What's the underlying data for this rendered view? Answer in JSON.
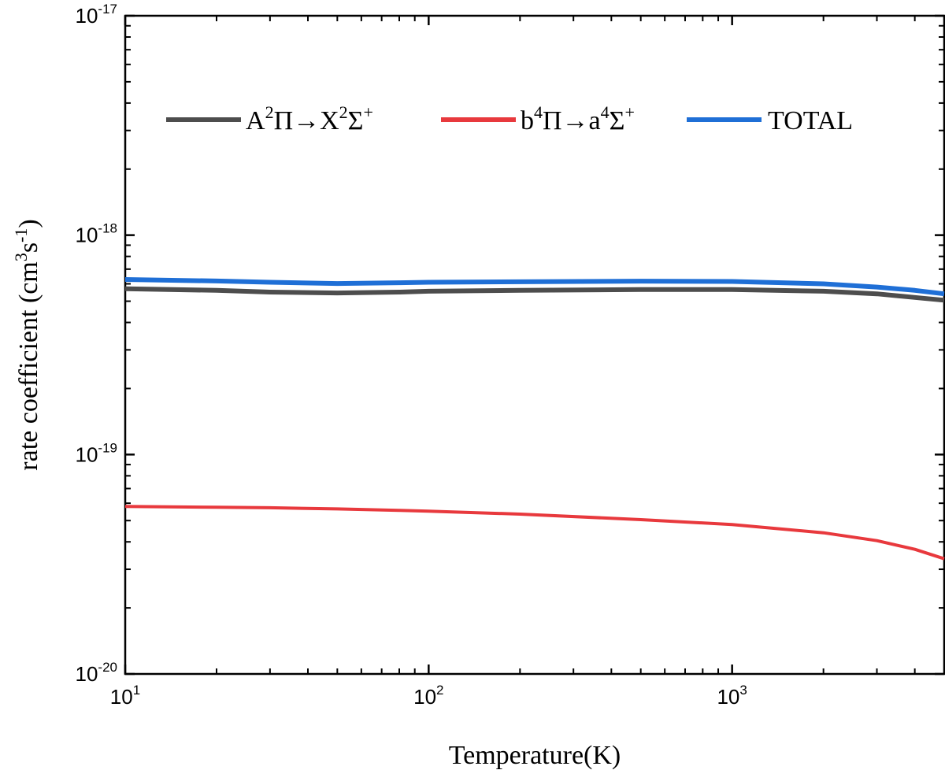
{
  "chart_data": {
    "type": "line",
    "title": "",
    "xlabel": "Temperature(K)",
    "ylabel": {
      "text": "rate coefficient (cm",
      "sup1": "3",
      "mid": "s",
      "sup2": "-1",
      "end": ")"
    },
    "xscale": "log",
    "yscale": "log",
    "xlim": [
      10,
      5000
    ],
    "ylim": [
      1e-20,
      1e-17
    ],
    "grid": false,
    "legend_position": "top",
    "x_ticks": [
      {
        "value": 10,
        "base": "10",
        "exp": "1"
      },
      {
        "value": 100,
        "base": "10",
        "exp": "2"
      },
      {
        "value": 1000,
        "base": "10",
        "exp": "3"
      }
    ],
    "y_ticks": [
      {
        "value": 1e-20,
        "base": "10",
        "exp": "-20"
      },
      {
        "value": 1e-19,
        "base": "10",
        "exp": "-19"
      },
      {
        "value": 1e-18,
        "base": "10",
        "exp": "-18"
      },
      {
        "value": 1e-17,
        "base": "10",
        "exp": "-17"
      }
    ],
    "x": [
      10,
      20,
      30,
      50,
      80,
      100,
      200,
      500,
      1000,
      2000,
      3000,
      4000,
      5000
    ],
    "series": [
      {
        "name": "A2Π→X2Σ+",
        "legend": {
          "p1": "A",
          "s1": "2",
          "p2": "Π→X",
          "s2": "2",
          "p3": "Σ",
          "s3": "+"
        },
        "color": "#4d4d4d",
        "values": [
          5.7e-19,
          5.6e-19,
          5.5e-19,
          5.45e-19,
          5.5e-19,
          5.55e-19,
          5.6e-19,
          5.65e-19,
          5.65e-19,
          5.55e-19,
          5.4e-19,
          5.2e-19,
          5.05e-19
        ]
      },
      {
        "name": "b4Π→a4Σ+",
        "legend": {
          "p1": "b",
          "s1": "4",
          "p2": "Π→a",
          "s2": "4",
          "p3": "Σ",
          "s3": "+"
        },
        "color": "#e8393d",
        "values": [
          5.8e-20,
          5.75e-20,
          5.72e-20,
          5.65e-20,
          5.57e-20,
          5.52e-20,
          5.35e-20,
          5.05e-20,
          4.8e-20,
          4.4e-20,
          4.05e-20,
          3.7e-20,
          3.35e-20
        ]
      },
      {
        "name": "TOTAL",
        "legend": {
          "p1": "TOTAL",
          "s1": "",
          "p2": "",
          "s2": "",
          "p3": "",
          "s3": ""
        },
        "color": "#1f6fd6",
        "values": [
          6.28e-19,
          6.18e-19,
          6.1e-19,
          6.02e-19,
          6.07e-19,
          6.1e-19,
          6.13e-19,
          6.17e-19,
          6.15e-19,
          6e-19,
          5.8e-19,
          5.6e-19,
          5.4e-19
        ]
      }
    ]
  }
}
